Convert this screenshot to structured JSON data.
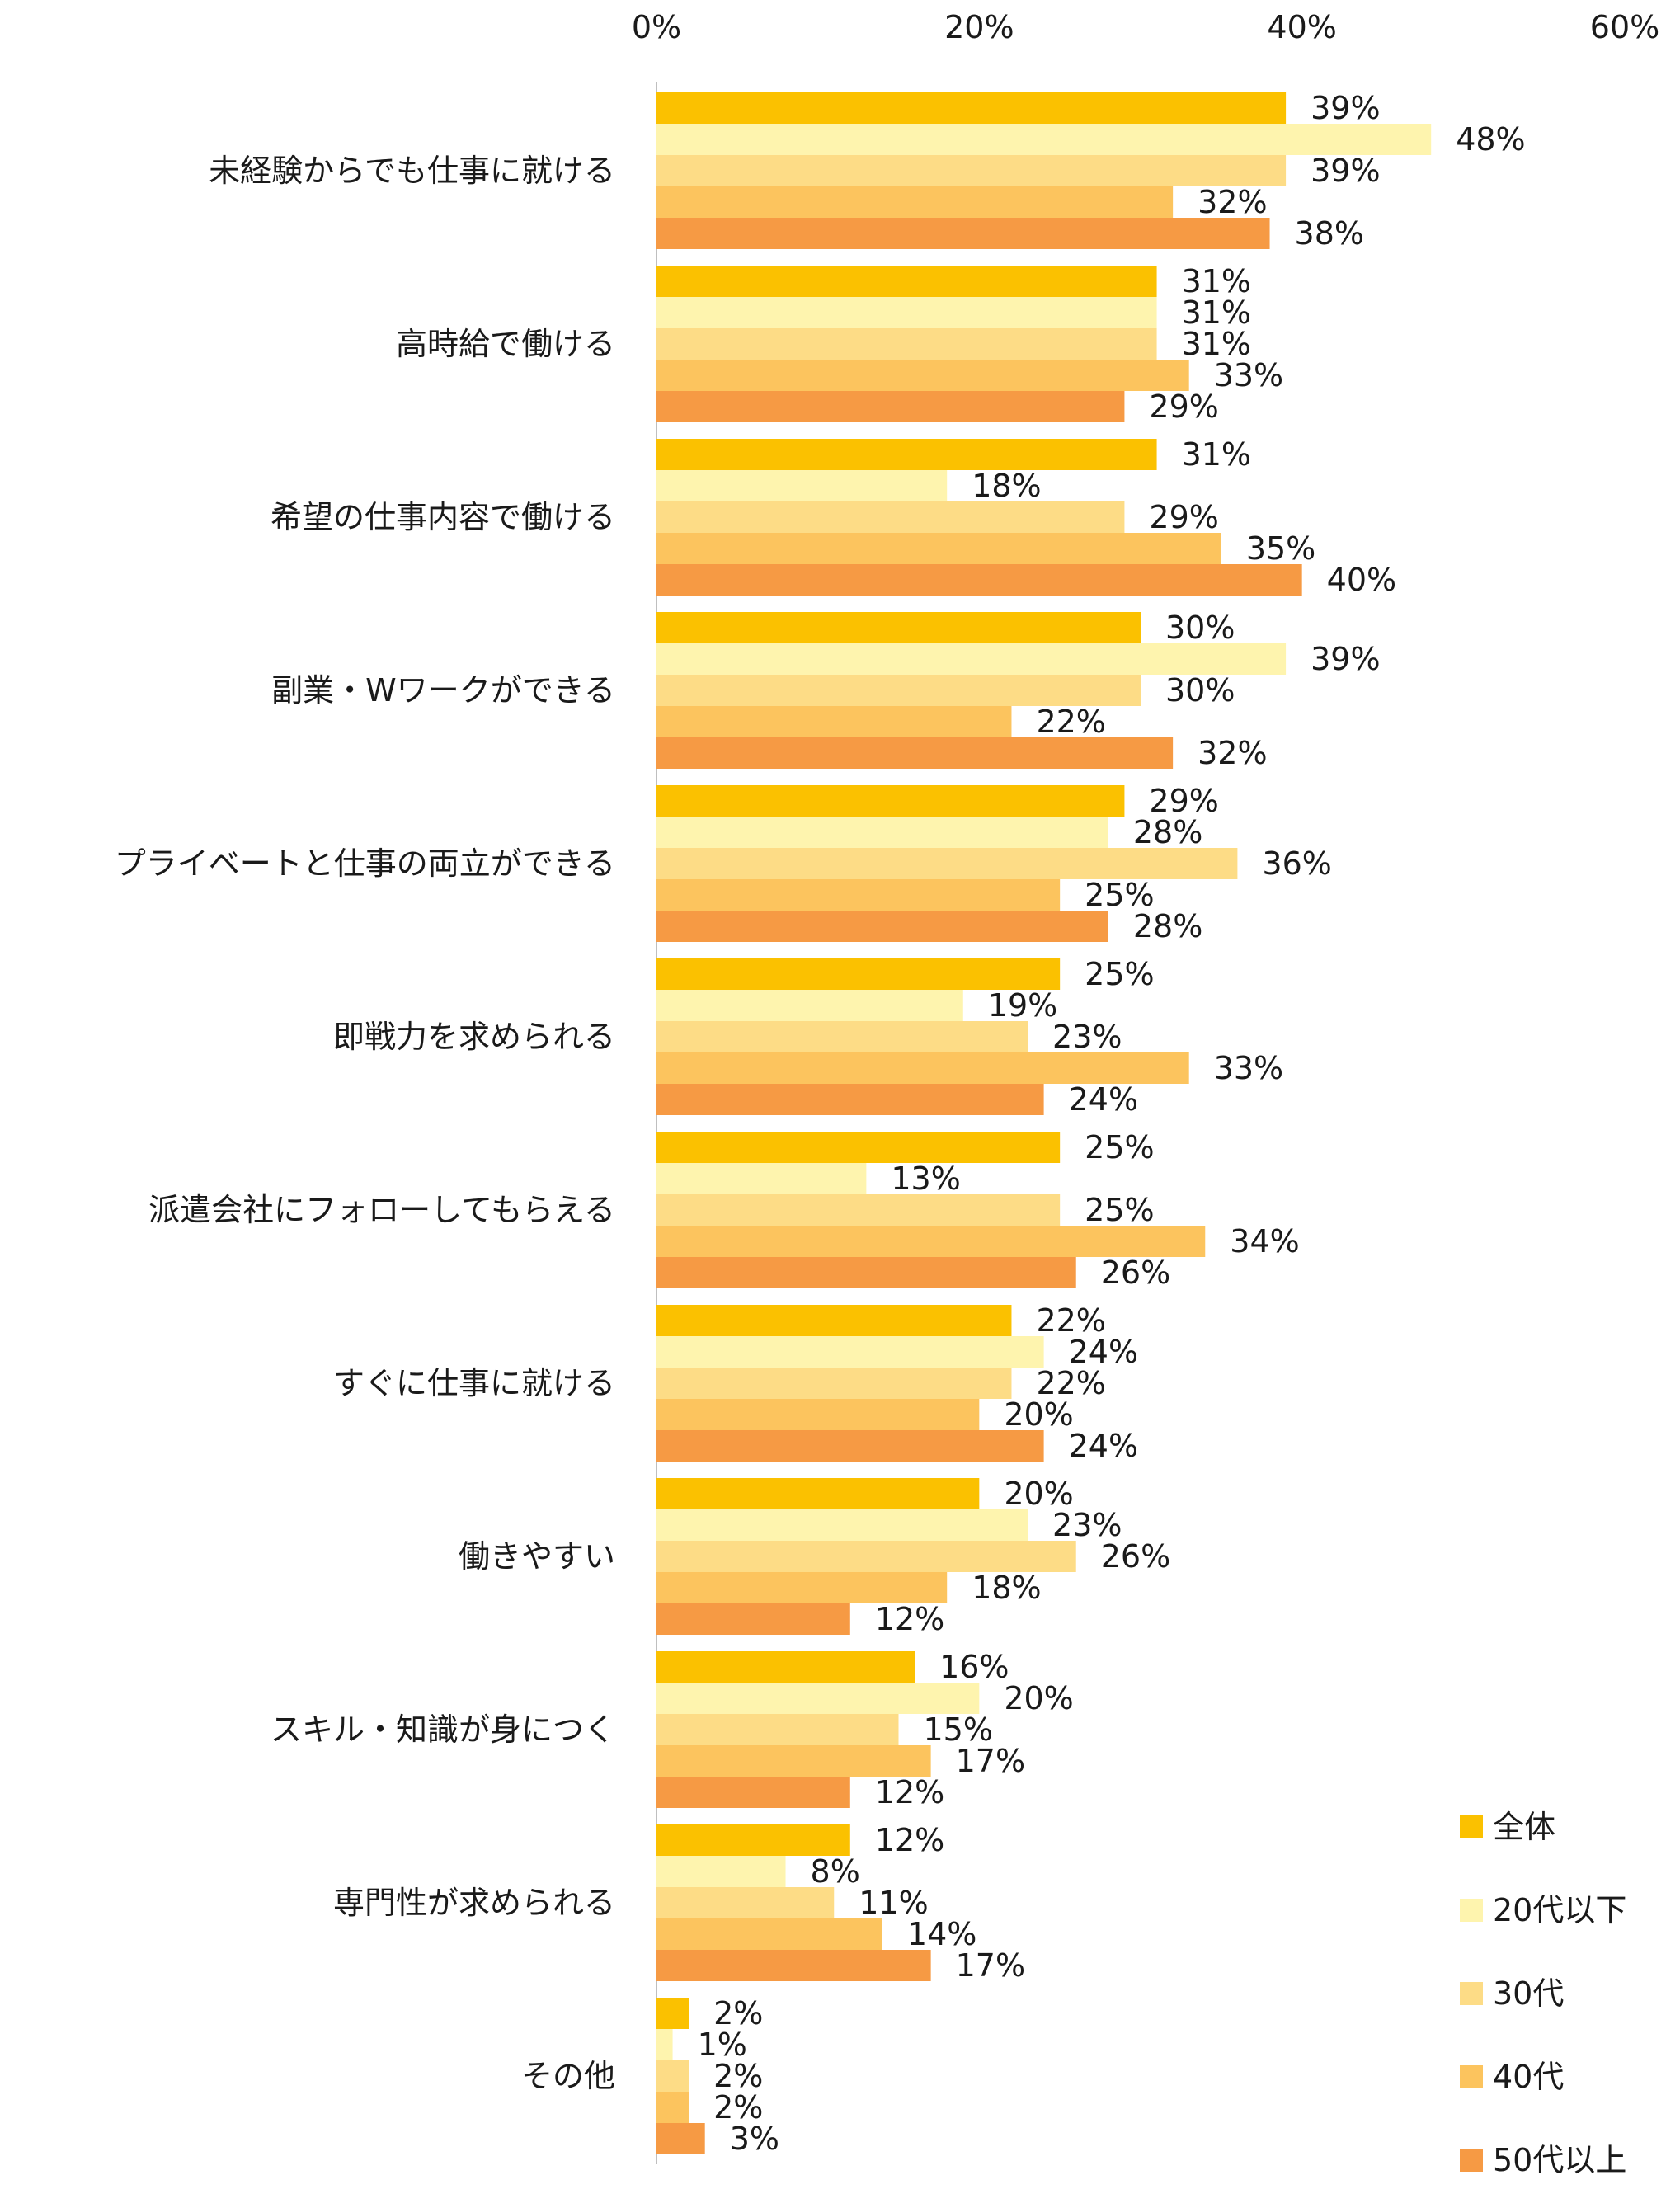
{
  "chart_data": {
    "type": "bar",
    "orientation": "horizontal",
    "title": "",
    "xlabel": "",
    "ylabel": "",
    "xlim": [
      0,
      60
    ],
    "x_ticks": [
      "0%",
      "20%",
      "40%",
      "60%"
    ],
    "grid": false,
    "legend_position": "bottom-right",
    "categories": [
      "未経験からでも仕事に就ける",
      "高時給で働ける",
      "希望の仕事内容で働ける",
      "副業・Wワークができる",
      "プライベートと仕事の両立ができる",
      "即戦力を求められる",
      "派遣会社にフォローしてもらえる",
      "すぐに仕事に就ける",
      "働きやすい",
      "スキル・知識が身につく",
      "専門性が求められる",
      "その他"
    ],
    "series": [
      {
        "name": "全体",
        "color": "#FBC100",
        "values": [
          39,
          31,
          31,
          30,
          29,
          25,
          25,
          22,
          20,
          16,
          12,
          2
        ]
      },
      {
        "name": "20代以下",
        "color": "#FEF4AE",
        "values": [
          48,
          31,
          18,
          39,
          28,
          19,
          13,
          24,
          23,
          20,
          8,
          1
        ]
      },
      {
        "name": "30代",
        "color": "#FDDC86",
        "values": [
          39,
          31,
          29,
          30,
          36,
          23,
          25,
          22,
          26,
          15,
          11,
          2
        ]
      },
      {
        "name": "40代",
        "color": "#FCC45E",
        "values": [
          32,
          33,
          35,
          22,
          25,
          33,
          34,
          20,
          18,
          17,
          14,
          2
        ]
      },
      {
        "name": "50代以上",
        "color": "#F69A44",
        "values": [
          38,
          29,
          40,
          32,
          28,
          24,
          26,
          24,
          12,
          12,
          17,
          3
        ]
      }
    ],
    "value_suffix": "%"
  }
}
